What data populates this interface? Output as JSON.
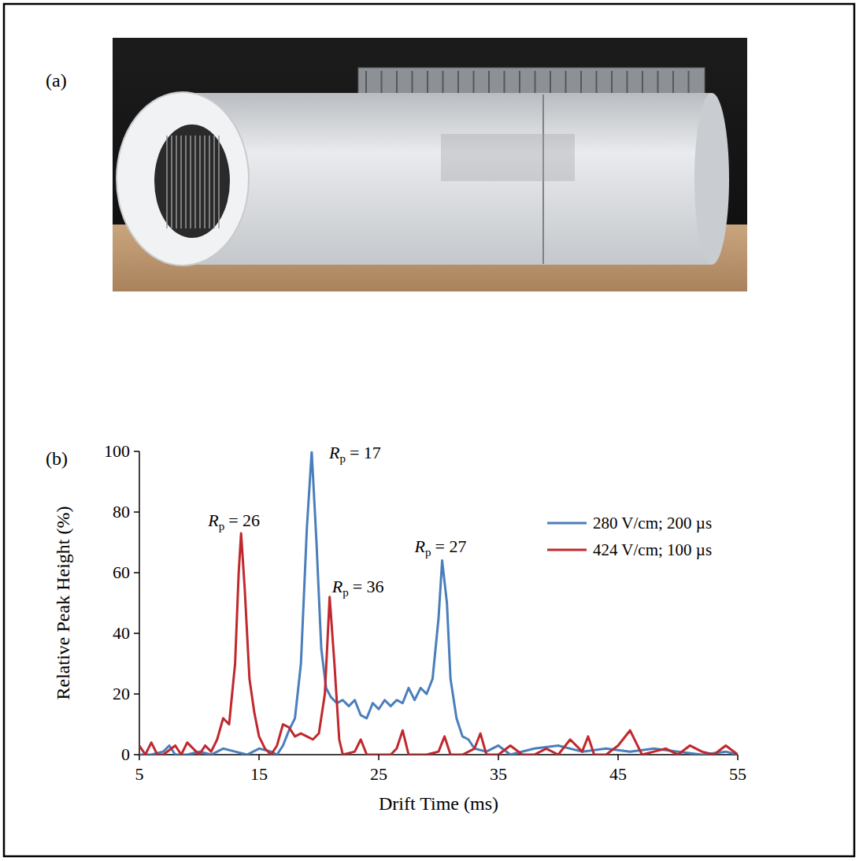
{
  "panel_labels": [
    "(a)",
    "(b)"
  ],
  "chart_data": {
    "type": "line",
    "x_label": "Drift Time (ms)",
    "y_label": "Relative Peak Height (%)",
    "xlim": [
      5,
      55
    ],
    "ylim": [
      0,
      100
    ],
    "xticks": [
      5,
      15,
      25,
      35,
      45,
      55
    ],
    "yticks": [
      0,
      20,
      40,
      60,
      80,
      100
    ],
    "grid": false,
    "legend": "right",
    "series": [
      {
        "name": "280 V/cm; 200 µs",
        "color": "#4a7ebb",
        "x": [
          5,
          6,
          7,
          7.5,
          8,
          9,
          10,
          11,
          12,
          13,
          14,
          15,
          16,
          16.5,
          17,
          17.5,
          18,
          18.5,
          19,
          19.4,
          19.8,
          20.2,
          20.6,
          21,
          21.5,
          22,
          22.5,
          23,
          23.5,
          24,
          24.5,
          25,
          25.5,
          26,
          26.5,
          27,
          27.5,
          28,
          28.5,
          29,
          29.5,
          30,
          30.3,
          30.7,
          31,
          31.5,
          32,
          32.5,
          33,
          34,
          35,
          36,
          38,
          40,
          42,
          44,
          46,
          48,
          50,
          52,
          54,
          55
        ],
        "values": [
          0,
          0,
          1,
          3,
          0,
          0,
          1,
          0,
          2,
          1,
          0,
          2,
          1,
          0,
          3,
          8,
          12,
          30,
          75,
          100,
          70,
          35,
          22,
          19,
          17,
          18,
          16,
          18,
          13,
          12,
          17,
          15,
          18,
          16,
          18,
          17,
          22,
          18,
          22,
          20,
          25,
          45,
          64,
          50,
          25,
          12,
          6,
          5,
          2,
          1,
          3,
          0,
          2,
          3,
          1,
          2,
          1,
          2,
          1,
          0,
          1,
          0
        ]
      },
      {
        "name": "424 V/cm; 100 µs",
        "color": "#c0282d",
        "x": [
          5,
          5.5,
          6,
          6.5,
          7,
          8,
          8.5,
          9,
          10,
          10.5,
          11,
          11.5,
          12,
          12.5,
          13,
          13.3,
          13.5,
          13.8,
          14.2,
          14.6,
          15,
          15.5,
          16,
          16.5,
          17,
          17.5,
          18,
          18.5,
          19,
          19.5,
          20,
          20.5,
          20.9,
          21.3,
          21.7,
          22,
          23,
          23.5,
          24,
          25,
          26,
          26.5,
          27,
          27.5,
          28,
          29,
          30,
          30.5,
          31,
          32,
          33,
          33.5,
          34,
          35,
          36,
          37,
          38,
          39,
          40,
          41,
          42,
          42.5,
          43,
          44,
          45,
          46,
          47,
          48,
          49,
          50,
          51,
          52,
          53,
          54,
          55
        ],
        "values": [
          3,
          0,
          4,
          0,
          0,
          3,
          0,
          4,
          0,
          3,
          1,
          5,
          12,
          10,
          30,
          60,
          73,
          55,
          25,
          14,
          6,
          2,
          0,
          3,
          10,
          9,
          6,
          7,
          6,
          5,
          7,
          20,
          52,
          30,
          5,
          0,
          1,
          5,
          0,
          0,
          0,
          2,
          8,
          0,
          0,
          0,
          1,
          6,
          0,
          0,
          2,
          7,
          0,
          0,
          3,
          0,
          0,
          2,
          0,
          5,
          1,
          6,
          0,
          0,
          3,
          8,
          0,
          1,
          2,
          0,
          3,
          1,
          0,
          3,
          0
        ]
      }
    ],
    "annotations": [
      {
        "symbol": "R",
        "subscript": "p",
        "text": "= 17",
        "x": 19.4,
        "y": 100
      },
      {
        "symbol": "R",
        "subscript": "p",
        "text": "= 26",
        "x": 13.5,
        "y": 73
      },
      {
        "symbol": "R",
        "subscript": "p",
        "text": "= 36",
        "x": 20.9,
        "y": 52
      },
      {
        "symbol": "R",
        "subscript": "p",
        "text": "= 27",
        "x": 30.3,
        "y": 64
      }
    ]
  }
}
